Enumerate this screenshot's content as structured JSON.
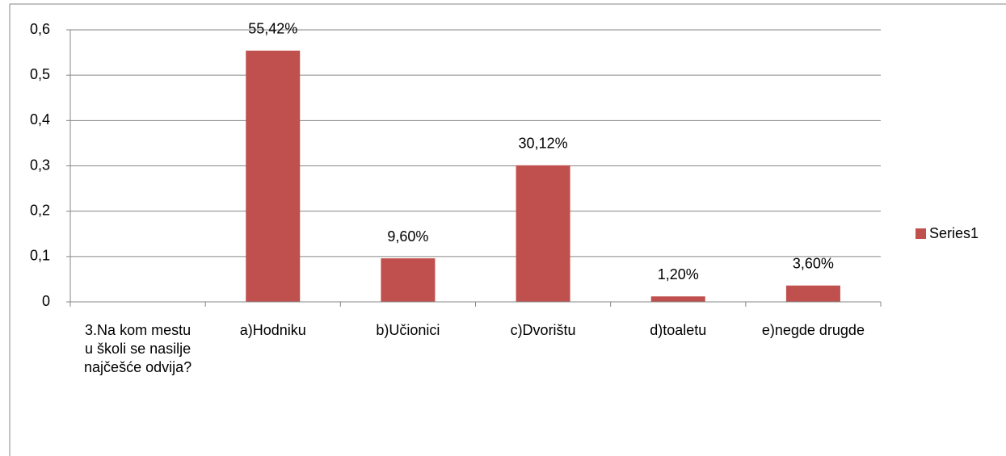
{
  "chart_data": {
    "type": "bar",
    "categories": [
      "3.Na kom mestu u školi se nasilje najčešće odvija?",
      "a)Hodniku",
      "b)Učionici",
      "c)Dvorištu",
      "d)toaletu",
      "e)negde drugde"
    ],
    "series": [
      {
        "name": "Series1",
        "color": "#c0504d",
        "values": [
          null,
          0.5542,
          0.096,
          0.3012,
          0.012,
          0.036
        ],
        "value_labels": [
          null,
          "55,42%",
          "9,60%",
          "30,12%",
          "1,20%",
          "3,60%"
        ]
      }
    ],
    "ylim": [
      0,
      0.6
    ],
    "yticks": [
      0,
      {
        "value": 0.1,
        "label": "0,1"
      },
      {
        "value": 0.2,
        "label": "0,2"
      },
      {
        "value": 0.3,
        "label": "0,3"
      },
      {
        "value": 0.4,
        "label": "0,4"
      },
      {
        "value": 0.5,
        "label": "0,5"
      },
      {
        "value": 0.6,
        "label": "0,6"
      }
    ],
    "grid": true,
    "legend": "right"
  }
}
